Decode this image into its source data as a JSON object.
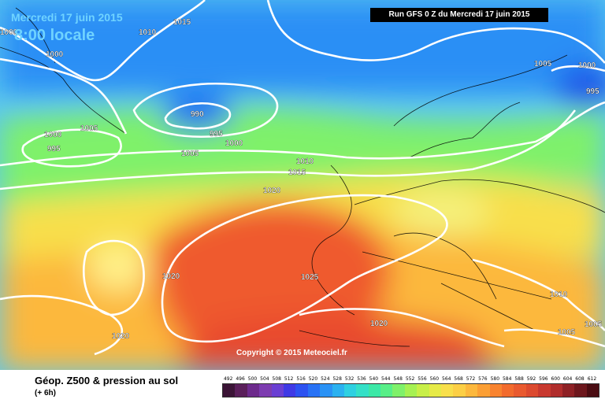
{
  "header": {
    "date": "Mercredi 17 juin 2015",
    "hour": "8:00 locale",
    "run": "Run GFS 0 Z du Mercredi 17 juin 2015"
  },
  "copyright": "Copyright © 2015 Meteociel.fr",
  "legend": {
    "title": "Géop. Z500 & pression au sol",
    "subtitle": "(+ 6h)",
    "ticks": [
      "492",
      "496",
      "500",
      "504",
      "508",
      "512",
      "516",
      "520",
      "524",
      "528",
      "532",
      "536",
      "540",
      "544",
      "548",
      "552",
      "556",
      "560",
      "564",
      "568",
      "572",
      "576",
      "580",
      "584",
      "588",
      "592",
      "596",
      "600",
      "604",
      "608",
      "612"
    ],
    "colors": [
      "#3b1436",
      "#5a1f5a",
      "#6d2a8c",
      "#7d3cb0",
      "#6a3fd3",
      "#3f39e5",
      "#2c52f1",
      "#2872f5",
      "#2a92f5",
      "#2bb1f0",
      "#2ed0e1",
      "#34e0c7",
      "#3ce8a7",
      "#58ef88",
      "#7ff16a",
      "#a6f152",
      "#c8ef48",
      "#e6ea47",
      "#f8df4b",
      "#fccf45",
      "#fcb83d",
      "#fb9f35",
      "#f8832f",
      "#f26b2d",
      "#e95a2f",
      "#dc4a2f",
      "#c8392f",
      "#b02d2c",
      "#8e2125",
      "#6d171d",
      "#4a0c12"
    ]
  },
  "map_labels": [
    {
      "text": "1015"
    },
    {
      "text": "1010"
    },
    {
      "text": "1000"
    },
    {
      "text": "1000"
    },
    {
      "text": "990"
    },
    {
      "text": "995"
    },
    {
      "text": "1000"
    },
    {
      "text": "1005"
    },
    {
      "text": "1000"
    },
    {
      "text": "995"
    },
    {
      "text": "1005"
    },
    {
      "text": "1010"
    },
    {
      "text": "1015"
    },
    {
      "text": "1020"
    },
    {
      "text": "1005"
    },
    {
      "text": "1000"
    },
    {
      "text": "995"
    },
    {
      "text": "1020"
    },
    {
      "text": "1025"
    },
    {
      "text": "1020"
    },
    {
      "text": "1020"
    },
    {
      "text": "1010"
    },
    {
      "text": "1005"
    },
    {
      "text": "1005"
    }
  ]
}
